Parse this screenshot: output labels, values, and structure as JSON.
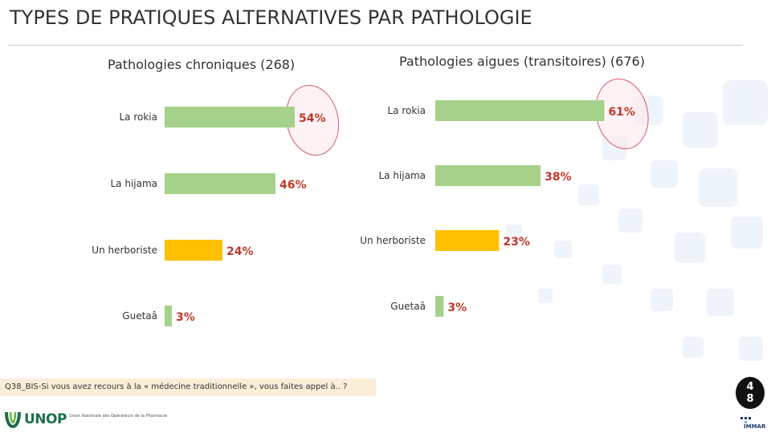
{
  "page": {
    "title": "TYPES DE PRATIQUES ALTERNATIVES PAR PATHOLOGIE",
    "footnote": "Q38_BIS-Si vous avez recours à la « médecine traditionnelle », vous faites appel à.. ?",
    "page_number_line1": "4",
    "page_number_line2": "8",
    "logo_left_name": "UNOP",
    "logo_left_tagline": "Union Nationale des Opérateurs de la Pharmacie",
    "logo_right_name": "IMMAR"
  },
  "colors": {
    "bar_green": "#a5d18a",
    "bar_yellow": "#ffc000",
    "value_label": "#c0392b",
    "highlight_circle": "#d06070",
    "highlight_fill": "#fde9ec",
    "footnote_bg": "#fbeed8",
    "tile": "#e9eff8"
  },
  "chart_data": [
    {
      "type": "bar",
      "orientation": "horizontal",
      "title": "Pathologies chroniques (268)",
      "categories": [
        "La rokia",
        "La hijama",
        "Un herboriste",
        "Guetaâ"
      ],
      "values": [
        54,
        46,
        24,
        3
      ],
      "value_labels": [
        "54%",
        "46%",
        "24%",
        "3%"
      ],
      "unit": "%",
      "bar_colors": [
        "#a5d18a",
        "#a5d18a",
        "#ffc000",
        "#a5d18a"
      ],
      "highlighted_category": "La rokia",
      "xlim": [
        0,
        100
      ],
      "grid": false,
      "legend": "none"
    },
    {
      "type": "bar",
      "orientation": "horizontal",
      "title": "Pathologies aigues (transitoires) (676)",
      "categories": [
        "La rokia",
        "La hijama",
        "Un herboriste",
        "Guetaâ"
      ],
      "values": [
        61,
        38,
        23,
        3
      ],
      "value_labels": [
        "61%",
        "38%",
        "23%",
        "3%"
      ],
      "unit": "%",
      "bar_colors": [
        "#a5d18a",
        "#a5d18a",
        "#ffc000",
        "#a5d18a"
      ],
      "highlighted_category": "La rokia",
      "xlim": [
        0,
        100
      ],
      "grid": false,
      "legend": "none"
    }
  ]
}
